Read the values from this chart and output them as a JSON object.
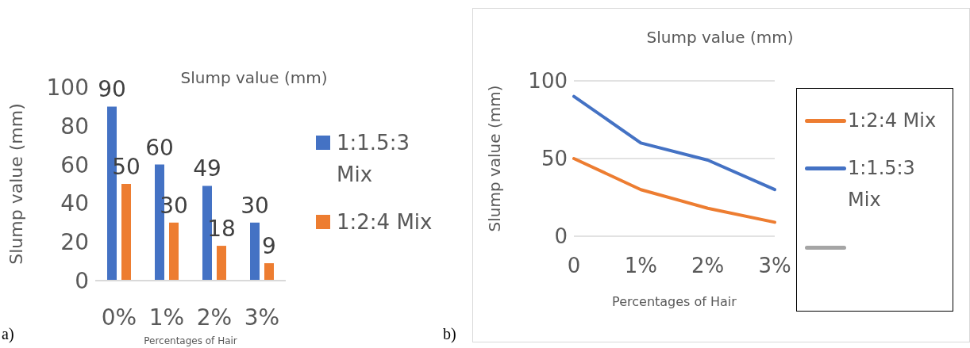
{
  "chart_data": [
    {
      "type": "bar",
      "title": "Slump value (mm)",
      "xlabel": "Percentages of Hair",
      "ylabel": "Slump value (mm)",
      "categories": [
        "0%",
        "1%",
        "2%",
        "3%"
      ],
      "series": [
        {
          "name": "1:1.5:3 Mix",
          "color": "#4472c4",
          "values": [
            90,
            60,
            49,
            30
          ]
        },
        {
          "name": "1:2:4 Mix",
          "color": "#ed7d31",
          "values": [
            50,
            30,
            18,
            9
          ]
        }
      ],
      "ylim": [
        0,
        100
      ],
      "yticks": [
        0,
        20,
        40,
        60,
        80,
        100
      ],
      "grid": false,
      "legend": "right",
      "data_labels": true,
      "annotations": [
        "a)"
      ]
    },
    {
      "type": "line",
      "title": "Slump value (mm)",
      "xlabel": "Percentages of Hair",
      "ylabel": "Slump value (mm)",
      "categories": [
        "0",
        "1%",
        "2%",
        "3%"
      ],
      "series": [
        {
          "name": "1:2:4 Mix",
          "color": "#ed7d31",
          "values": [
            50,
            30,
            18,
            9
          ]
        },
        {
          "name": "1:1.5:3 Mix",
          "color": "#4472c4",
          "values": [
            90,
            60,
            49,
            30
          ]
        },
        {
          "color": "#a5a5a5",
          "values": [
            null,
            null,
            null,
            null
          ]
        }
      ],
      "ylim": [
        0,
        100
      ],
      "yticks": [
        0,
        50,
        100
      ],
      "grid": "y",
      "legend": "right",
      "marker": "none",
      "annotations": [
        "b)"
      ]
    }
  ]
}
